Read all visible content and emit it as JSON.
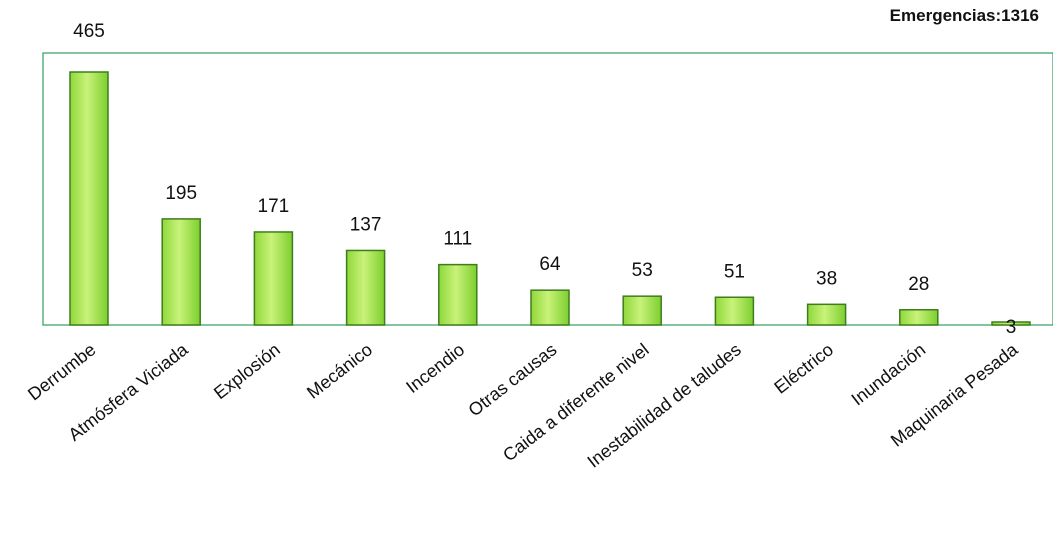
{
  "header": {
    "total_label": "Emergencias:1316"
  },
  "colors": {
    "bar_fill_top": "#c9f27a",
    "bar_fill_bottom": "#7ccf2e",
    "bar_stroke": "#3e7d1d",
    "frame": "#2e9e5e"
  },
  "chart_data": {
    "type": "bar",
    "title": "",
    "xlabel": "",
    "ylabel": "",
    "ylim": [
      0,
      500
    ],
    "grid": false,
    "categories": [
      "Derrumbe",
      "Atmósfera Viciada",
      "Explosión",
      "Mecánico",
      "Incendio",
      "Otras causas",
      "Caida a diferente nivel",
      "Inestabilidad de taludes",
      "Eléctrico",
      "Inundación",
      "Maquinaria Pesada"
    ],
    "values": [
      465,
      195,
      171,
      137,
      111,
      64,
      53,
      51,
      38,
      28,
      3
    ],
    "data_labels": [
      "465",
      "195",
      "171",
      "137",
      "111",
      "64",
      "53",
      "51",
      "38",
      "28",
      "3"
    ]
  }
}
